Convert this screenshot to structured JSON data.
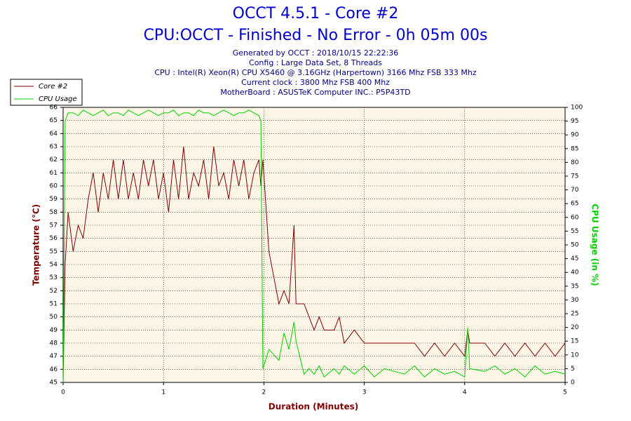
{
  "chart_data": {
    "type": "line",
    "title": "OCCT 4.5.1 - Core #2",
    "subtitle": "CPU:OCCT - Finished - No Error - 0h 05m 00s",
    "info": [
      "Generated by OCCT : 2018/10/15 22:22:36",
      "Config : Large Data Set, 8 Threads",
      "CPU : Intel(R) Xeon(R) CPU X5460 @ 3.16GHz (Harpertown) 3166 Mhz FSB 333 Mhz",
      "Current clock : 3800 Mhz FSB 400 Mhz",
      "MotherBoard : ASUSTeK Computer INC.: P5P43TD"
    ],
    "xlabel": "Duration (Minutes)",
    "ylabel": "Temperature (°C)",
    "y2label": "CPU Usage (in %)",
    "xlim": [
      0,
      5
    ],
    "xticks": [
      0,
      1,
      2,
      3,
      4,
      5
    ],
    "ylim": [
      45,
      66
    ],
    "yticks": [
      45,
      46,
      47,
      48,
      49,
      50,
      51,
      52,
      53,
      54,
      55,
      56,
      57,
      58,
      59,
      60,
      61,
      62,
      63,
      64,
      65,
      66
    ],
    "y2lim": [
      0,
      100
    ],
    "y2ticks": [
      0,
      5,
      10,
      15,
      20,
      25,
      30,
      35,
      40,
      45,
      50,
      55,
      60,
      65,
      70,
      75,
      80,
      85,
      90,
      95,
      100
    ],
    "grid": true,
    "legend": "top-left",
    "x": [
      0,
      0.02,
      0.05,
      0.1,
      0.15,
      0.2,
      0.25,
      0.3,
      0.35,
      0.4,
      0.45,
      0.5,
      0.55,
      0.6,
      0.65,
      0.7,
      0.75,
      0.8,
      0.85,
      0.9,
      0.95,
      1.0,
      1.05,
      1.1,
      1.15,
      1.2,
      1.25,
      1.3,
      1.35,
      1.4,
      1.45,
      1.5,
      1.55,
      1.6,
      1.65,
      1.7,
      1.75,
      1.8,
      1.85,
      1.9,
      1.95,
      1.97,
      1.99,
      2.05,
      2.1,
      2.15,
      2.2,
      2.25,
      2.3,
      2.32,
      2.4,
      2.45,
      2.5,
      2.55,
      2.6,
      2.7,
      2.75,
      2.8,
      2.9,
      3.0,
      3.1,
      3.2,
      3.3,
      3.4,
      3.5,
      3.6,
      3.7,
      3.8,
      3.9,
      4.0,
      4.03,
      4.05,
      4.2,
      4.3,
      4.4,
      4.5,
      4.6,
      4.7,
      4.8,
      4.9,
      5.0
    ],
    "series": [
      {
        "name": "Core #2",
        "color": "#800000",
        "axis": "y",
        "values": [
          45,
          54,
          58,
          55,
          57,
          56,
          59,
          61,
          58,
          61,
          59,
          62,
          59,
          62,
          59,
          61,
          59,
          62,
          60,
          62,
          59,
          61,
          58,
          62,
          59,
          63,
          59,
          61,
          60,
          62,
          59,
          63,
          60,
          61,
          59,
          62,
          60,
          62,
          59,
          61,
          62,
          60,
          62,
          55,
          53,
          51,
          52,
          51,
          57,
          51,
          51,
          50,
          49,
          50,
          49,
          49,
          50,
          48,
          49,
          48,
          48,
          48,
          48,
          48,
          48,
          47,
          48,
          47,
          48,
          47,
          49,
          48,
          48,
          47,
          48,
          47,
          48,
          47,
          48,
          47,
          48
        ]
      },
      {
        "name": "CPU Usage",
        "color": "#00d000",
        "axis": "y2",
        "values": [
          0,
          95,
          98,
          98,
          97,
          99,
          98,
          97,
          98,
          99,
          97,
          98,
          98,
          97,
          99,
          98,
          97,
          98,
          99,
          98,
          97,
          98,
          98,
          99,
          97,
          98,
          98,
          97,
          99,
          98,
          98,
          97,
          98,
          99,
          98,
          97,
          98,
          98,
          99,
          98,
          97,
          95,
          5,
          12,
          10,
          8,
          18,
          12,
          22,
          15,
          3,
          5,
          3,
          6,
          2,
          5,
          3,
          6,
          3,
          6,
          2,
          5,
          4,
          3,
          6,
          2,
          5,
          3,
          4,
          2,
          20,
          5,
          4,
          6,
          3,
          5,
          2,
          6,
          3,
          4,
          3
        ]
      }
    ]
  }
}
